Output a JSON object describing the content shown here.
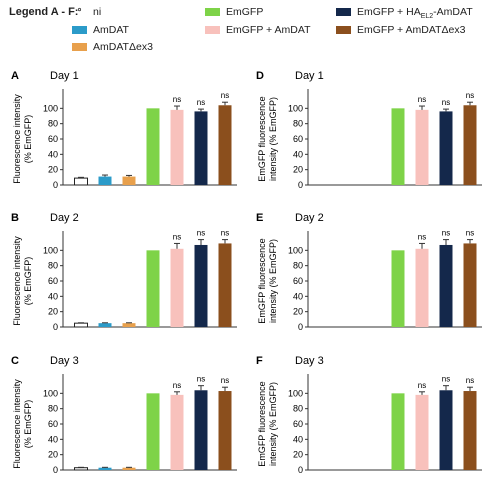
{
  "legend": {
    "title": "Legend A - F:",
    "items": [
      {
        "key": "ni",
        "label": "ni",
        "color": "#ffffff",
        "symbol": "°"
      },
      {
        "key": "amdat",
        "label": "AmDAT",
        "color": "#2b9bc9"
      },
      {
        "key": "amdatdex3",
        "label": "AmDATΔex3",
        "color": "#e8a04c"
      },
      {
        "key": "emgfp",
        "label": "EmGFP",
        "color": "#7ed348"
      },
      {
        "key": "emgfp_amdat",
        "label": "EmGFP + AmDAT",
        "color": "#f8c1bc"
      },
      {
        "key": "emgfp_ha",
        "label_pre": "EmGFP + HA",
        "label_sub": "EL2",
        "label_post": "-AmDAT",
        "color": "#14284b"
      },
      {
        "key": "emgfp_amdatdex3",
        "label": "EmGFP + AmDATΔex3",
        "color": "#8b4f1d"
      }
    ]
  },
  "chart_data": [
    {
      "panel": "A",
      "type": "bar",
      "title": "Day 1",
      "ylabel": "Fluorescence intensity (% EmGFP)",
      "ylim": [
        0,
        120
      ],
      "yticks": [
        0,
        20,
        40,
        60,
        80,
        100
      ],
      "categories": [
        "ni",
        "AmDAT",
        "AmDATΔex3",
        "EmGFP",
        "EmGFP + AmDAT",
        "EmGFP + HAEL2-AmDAT",
        "EmGFP + AmDATΔex3"
      ],
      "values": [
        9,
        11,
        11,
        100,
        98,
        96,
        104
      ],
      "errors": [
        1,
        2,
        1.5,
        0,
        5,
        3,
        4
      ],
      "annotations": [
        "",
        "",
        "",
        "",
        "ns",
        "ns",
        "ns"
      ]
    },
    {
      "panel": "B",
      "type": "bar",
      "title": "Day 2",
      "ylabel": "Fluorescence intensity (% EmGFP)",
      "ylim": [
        0,
        120
      ],
      "yticks": [
        0,
        20,
        40,
        60,
        80,
        100
      ],
      "categories": [
        "ni",
        "AmDAT",
        "AmDATΔex3",
        "EmGFP",
        "EmGFP + AmDAT",
        "EmGFP + HAEL2-AmDAT",
        "EmGFP + AmDATΔex3"
      ],
      "values": [
        5,
        5,
        5,
        100,
        102,
        107,
        109
      ],
      "errors": [
        0.5,
        0.5,
        0.5,
        0,
        7,
        7,
        5
      ],
      "annotations": [
        "",
        "",
        "",
        "",
        "ns",
        "ns",
        "ns"
      ]
    },
    {
      "panel": "C",
      "type": "bar",
      "title": "Day 3",
      "ylabel": "Fluorescence intensity (% EmGFP)",
      "ylim": [
        0,
        120
      ],
      "yticks": [
        0,
        20,
        40,
        60,
        80,
        100
      ],
      "categories": [
        "ni",
        "AmDAT",
        "AmDATΔex3",
        "EmGFP",
        "EmGFP + AmDAT",
        "EmGFP + HAEL2-AmDAT",
        "EmGFP + AmDATΔex3"
      ],
      "values": [
        3,
        3,
        3,
        100,
        98,
        104,
        103
      ],
      "errors": [
        0.5,
        0.5,
        0.5,
        0,
        4,
        6,
        5
      ],
      "annotations": [
        "",
        "",
        "",
        "",
        "ns",
        "ns",
        "ns"
      ]
    },
    {
      "panel": "D",
      "type": "bar",
      "title": "Day 1",
      "ylabel": "EmGFP fluorescence intensity (% EmGFP)",
      "ylim": [
        0,
        120
      ],
      "yticks": [
        0,
        20,
        40,
        60,
        80,
        100
      ],
      "categories": [
        "ni",
        "AmDAT",
        "AmDATΔex3",
        "EmGFP",
        "EmGFP + AmDAT",
        "EmGFP + HAEL2-AmDAT",
        "EmGFP + AmDATΔex3"
      ],
      "values": [
        0,
        0,
        0,
        100,
        98,
        96,
        104
      ],
      "errors": [
        0,
        0,
        0,
        0,
        5,
        3,
        4
      ],
      "annotations": [
        "",
        "",
        "",
        "",
        "ns",
        "ns",
        "ns"
      ]
    },
    {
      "panel": "E",
      "type": "bar",
      "title": "Day 2",
      "ylabel": "EmGFP fluorescence intensity (% EmGFP)",
      "ylim": [
        0,
        120
      ],
      "yticks": [
        0,
        20,
        40,
        60,
        80,
        100
      ],
      "categories": [
        "ni",
        "AmDAT",
        "AmDATΔex3",
        "EmGFP",
        "EmGFP + AmDAT",
        "EmGFP + HAEL2-AmDAT",
        "EmGFP + AmDATΔex3"
      ],
      "values": [
        0,
        0,
        0,
        100,
        102,
        107,
        109
      ],
      "errors": [
        0,
        0,
        0,
        0,
        7,
        7,
        5
      ],
      "annotations": [
        "",
        "",
        "",
        "",
        "ns",
        "ns",
        "ns"
      ]
    },
    {
      "panel": "F",
      "type": "bar",
      "title": "Day 3",
      "ylabel": "EmGFP fluorescence intensity (% EmGFP)",
      "ylim": [
        0,
        120
      ],
      "yticks": [
        0,
        20,
        40,
        60,
        80,
        100
      ],
      "categories": [
        "ni",
        "AmDAT",
        "AmDATΔex3",
        "EmGFP",
        "EmGFP + AmDAT",
        "EmGFP + HAEL2-AmDAT",
        "EmGFP + AmDATΔex3"
      ],
      "values": [
        0,
        0,
        0,
        100,
        98,
        104,
        103
      ],
      "errors": [
        0,
        0,
        0,
        0,
        4,
        6,
        5
      ],
      "annotations": [
        "",
        "",
        "",
        "",
        "ns",
        "ns",
        "ns"
      ]
    }
  ]
}
